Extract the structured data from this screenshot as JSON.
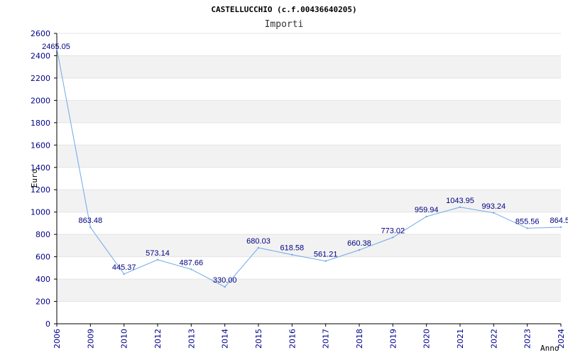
{
  "chart_data": {
    "type": "line",
    "title": "CASTELLUCCHIO (c.f.00436640205)",
    "subtitle": "Importi",
    "xlabel": "Anno",
    "ylabel": "Euro",
    "categories": [
      "2006",
      "2009",
      "2010",
      "2012",
      "2013",
      "2014",
      "2015",
      "2016",
      "2017",
      "2018",
      "2019",
      "2020",
      "2021",
      "2022",
      "2023",
      "2024"
    ],
    "values": [
      2465.05,
      863.48,
      445.37,
      573.14,
      487.66,
      330.0,
      680.03,
      618.58,
      561.21,
      660.38,
      773.02,
      959.94,
      1043.95,
      993.24,
      855.56,
      864.5
    ],
    "data_labels": [
      "2465.05",
      "863.48",
      "445.37",
      "573.14",
      "487.66",
      "330.00",
      "680.03",
      "618.58",
      "561.21",
      "660.38",
      "773.02",
      "959.94",
      "1043.95",
      "993.24",
      "855.56",
      "864.5"
    ],
    "yticks": [
      0,
      200,
      400,
      600,
      800,
      1000,
      1200,
      1400,
      1600,
      1800,
      2000,
      2200,
      2400,
      2600
    ],
    "ylim": [
      0,
      2600
    ],
    "grid": true,
    "legend": "none",
    "colors": {
      "line": "#6fa8e8",
      "band": "#f2f2f2",
      "tick_text": "#00008b",
      "data_label": "#000080",
      "axis": "#000000"
    }
  }
}
